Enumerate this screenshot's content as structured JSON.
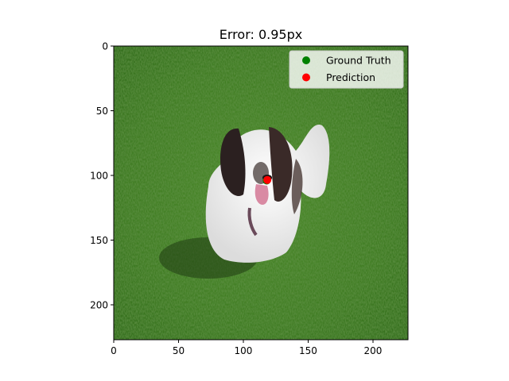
{
  "chart_data": {
    "type": "scatter",
    "title": "Error: 0.95px",
    "xlabel": "",
    "ylabel": "",
    "xlim": [
      0,
      227
    ],
    "ylim": [
      227,
      0
    ],
    "x_ticks": [
      0,
      50,
      100,
      150,
      200
    ],
    "y_ticks": [
      0,
      50,
      100,
      150,
      200
    ],
    "background": "photo of a long-haired black and white dog standing on green grass",
    "grid": false,
    "legend_position": "top-right",
    "series": [
      {
        "name": "Ground Truth",
        "color": "#008000",
        "points": [
          {
            "x": 118,
            "y": 104
          }
        ]
      },
      {
        "name": "Prediction",
        "color": "#ff0000",
        "points": [
          {
            "x": 118.5,
            "y": 103.5
          }
        ]
      }
    ]
  }
}
